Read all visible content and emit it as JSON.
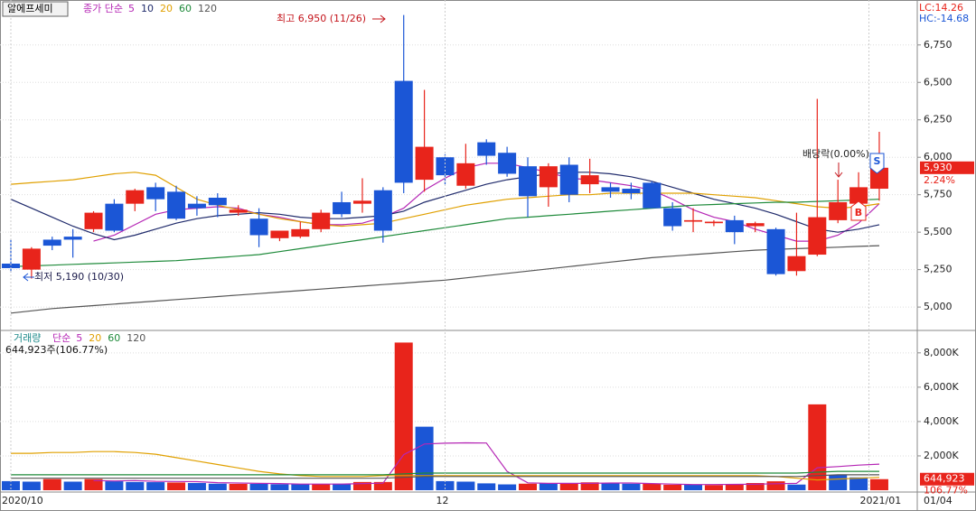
{
  "chart_data": [
    {
      "type": "candlestick",
      "title": "알에프세미",
      "legend_title": "종가 단순",
      "open": [
        5290,
        5250,
        5450,
        5470,
        5520,
        5690,
        5690,
        5800,
        5770,
        5690,
        5730,
        5630,
        5590,
        5460,
        5470,
        5520,
        5700,
        5690,
        5780,
        6510,
        5850,
        6000,
        5810,
        6100,
        6030,
        5940,
        5800,
        5950,
        5820,
        5800,
        5790,
        5830,
        5660,
        5570,
        5560,
        5580,
        5540,
        5520,
        5240,
        5350,
        5580,
        5690,
        5790
      ],
      "high": [
        5450,
        5400,
        5470,
        5520,
        5640,
        5720,
        5790,
        5830,
        5810,
        5740,
        5760,
        5680,
        5660,
        5510,
        5570,
        5650,
        5770,
        5860,
        5800,
        6950,
        6450,
        6020,
        6090,
        6120,
        6070,
        6000,
        5960,
        6000,
        5990,
        5830,
        5830,
        5840,
        5700,
        5660,
        5580,
        5610,
        5570,
        5530,
        5630,
        6390,
        5850,
        5900,
        6170
      ],
      "low": [
        5230,
        5190,
        5380,
        5330,
        5500,
        5500,
        5640,
        5640,
        5580,
        5610,
        5600,
        5610,
        5400,
        5440,
        5460,
        5500,
        5600,
        5630,
        5430,
        5760,
        5770,
        5820,
        5790,
        5950,
        5870,
        5600,
        5670,
        5700,
        5760,
        5730,
        5720,
        5660,
        5510,
        5500,
        5540,
        5420,
        5500,
        5210,
        5210,
        5340,
        5560,
        5670,
        5710
      ],
      "close": [
        5260,
        5390,
        5410,
        5450,
        5630,
        5510,
        5780,
        5720,
        5590,
        5660,
        5680,
        5650,
        5480,
        5510,
        5520,
        5630,
        5620,
        5710,
        5510,
        5830,
        6070,
        5880,
        5960,
        6010,
        5890,
        5740,
        5940,
        5750,
        5880,
        5770,
        5760,
        5660,
        5540,
        5580,
        5570,
        5500,
        5560,
        5220,
        5340,
        5600,
        5700,
        5800,
        5930
      ],
      "up_color": "#e8241b",
      "down_color": "#1b56d6",
      "series": [
        {
          "name": "5",
          "color": "#b526b5",
          "values": [
            null,
            null,
            null,
            null,
            5440,
            5480,
            5550,
            5620,
            5650,
            5660,
            5670,
            5660,
            5620,
            5600,
            5570,
            5550,
            5550,
            5560,
            5600,
            5660,
            5780,
            5860,
            5930,
            5960,
            5960,
            5930,
            5900,
            5860,
            5850,
            5830,
            5810,
            5780,
            5720,
            5650,
            5600,
            5570,
            5520,
            5480,
            5440,
            5440,
            5480,
            5560,
            5690
          ]
        },
        {
          "name": "10",
          "color": "#1f2a6b",
          "values": [
            5720,
            5660,
            5600,
            5540,
            5490,
            5450,
            5480,
            5520,
            5560,
            5590,
            5610,
            5620,
            5630,
            5620,
            5600,
            5590,
            5590,
            5600,
            5610,
            5640,
            5700,
            5740,
            5780,
            5820,
            5850,
            5870,
            5890,
            5900,
            5900,
            5890,
            5870,
            5840,
            5800,
            5760,
            5720,
            5690,
            5660,
            5620,
            5570,
            5520,
            5500,
            5520,
            5550
          ]
        },
        {
          "name": "20",
          "color": "#e0a000",
          "values": [
            5820,
            5830,
            5840,
            5850,
            5870,
            5890,
            5900,
            5880,
            5800,
            5720,
            5680,
            5650,
            5620,
            5590,
            5570,
            5550,
            5540,
            5550,
            5560,
            5590,
            5620,
            5650,
            5680,
            5700,
            5720,
            5730,
            5740,
            5750,
            5750,
            5760,
            5760,
            5760,
            5760,
            5760,
            5750,
            5740,
            5730,
            5710,
            5690,
            5670,
            5660,
            5670,
            5690
          ]
        },
        {
          "name": "60",
          "color": "#1e8a3a",
          "values": [
            5270,
            5275,
            5280,
            5285,
            5290,
            5295,
            5300,
            5305,
            5310,
            5320,
            5330,
            5340,
            5350,
            5370,
            5390,
            5410,
            5430,
            5450,
            5470,
            5490,
            5510,
            5530,
            5550,
            5570,
            5590,
            5600,
            5610,
            5620,
            5630,
            5640,
            5650,
            5660,
            5670,
            5680,
            5685,
            5690,
            5695,
            5700,
            5700,
            5705,
            5710,
            5715,
            5720
          ]
        },
        {
          "name": "120",
          "color": "#555555",
          "values": [
            4960,
            4975,
            4990,
            5000,
            5010,
            5020,
            5030,
            5040,
            5050,
            5060,
            5070,
            5080,
            5090,
            5100,
            5110,
            5120,
            5130,
            5140,
            5150,
            5160,
            5170,
            5180,
            5195,
            5210,
            5225,
            5240,
            5255,
            5270,
            5285,
            5300,
            5315,
            5330,
            5340,
            5350,
            5360,
            5370,
            5380,
            5385,
            5390,
            5395,
            5400,
            5405,
            5410
          ]
        }
      ],
      "ylim": [
        4850,
        7050
      ],
      "yticks": [
        {
          "value": 5000,
          "label": "5,000"
        },
        {
          "value": 5250,
          "label": "5,250"
        },
        {
          "value": 5500,
          "label": "5,500"
        },
        {
          "value": 5750,
          "label": "5,750"
        },
        {
          "value": 6000,
          "label": "6,000"
        },
        {
          "value": 6250,
          "label": "6,250"
        },
        {
          "value": 6500,
          "label": "6,500"
        },
        {
          "value": 6750,
          "label": "6,750"
        }
      ],
      "last_value_label": "5,930",
      "change_label": "2.24%",
      "lc_label": "LC:14.26",
      "hc_label": "HC:-14.68",
      "annotations": [
        "최고 6,950 (11/26)",
        "최저 5,190 (10/30)",
        "배당락(0.00%)",
        "S",
        "B"
      ]
    },
    {
      "type": "bar",
      "title": "거래량",
      "legend_title": "단순",
      "subtitle": "644,923주(106.77%)",
      "values": [
        530,
        500,
        650,
        500,
        650,
        520,
        480,
        470,
        450,
        420,
        380,
        370,
        370,
        350,
        340,
        360,
        380,
        480,
        480,
        8600,
        3700,
        530,
        500,
        400,
        340,
        380,
        420,
        400,
        460,
        420,
        380,
        380,
        320,
        320,
        300,
        320,
        420,
        520,
        330,
        5000,
        870,
        750,
        644.923
      ],
      "colors": [
        "#1b56d6",
        "#1b56d6",
        "#e8241b",
        "#1b56d6",
        "#e8241b",
        "#1b56d6",
        "#1b56d6",
        "#1b56d6",
        "#e8241b",
        "#1b56d6",
        "#1b56d6",
        "#e8241b",
        "#1b56d6",
        "#1b56d6",
        "#1b56d6",
        "#e8241b",
        "#1b56d6",
        "#e8241b",
        "#e8241b",
        "#e8241b",
        "#1b56d6",
        "#1b56d6",
        "#1b56d6",
        "#1b56d6",
        "#1b56d6",
        "#e8241b",
        "#1b56d6",
        "#e8241b",
        "#e8241b",
        "#1b56d6",
        "#1b56d6",
        "#e8241b",
        "#e8241b",
        "#1b56d6",
        "#e8241b",
        "#e8241b",
        "#e8241b",
        "#e8241b",
        "#1b56d6",
        "#e8241b",
        "#1b56d6",
        "#1b56d6",
        "#e8241b"
      ],
      "series": [
        {
          "name": "5",
          "color": "#b526b5",
          "values": [
            null,
            null,
            null,
            null,
            560,
            540,
            560,
            520,
            510,
            500,
            440,
            420,
            400,
            390,
            360,
            360,
            360,
            390,
            410,
            2070,
            2690,
            2740,
            2760,
            2750,
            1100,
            430,
            400,
            400,
            400,
            420,
            420,
            390,
            360,
            330,
            330,
            340,
            350,
            380,
            400,
            1310,
            1380,
            1460,
            1520
          ]
        },
        {
          "name": "20",
          "color": "#e0a000",
          "values": [
            2150,
            2150,
            2200,
            2200,
            2250,
            2250,
            2200,
            2100,
            1900,
            1700,
            1500,
            1300,
            1100,
            950,
            850,
            800,
            800,
            800,
            850,
            850,
            850,
            850,
            850,
            850,
            850,
            850,
            850,
            850,
            850,
            850,
            850,
            850,
            850,
            850,
            850,
            850,
            850,
            800,
            700,
            600,
            650,
            700,
            750
          ]
        },
        {
          "name": "60",
          "color": "#1e8a3a",
          "values": [
            900,
            900,
            900,
            900,
            900,
            900,
            900,
            900,
            900,
            900,
            900,
            900,
            900,
            900,
            900,
            900,
            900,
            900,
            900,
            950,
            1000,
            1000,
            1000,
            1000,
            1000,
            1000,
            1000,
            1000,
            1000,
            1000,
            1000,
            1000,
            1000,
            1000,
            1000,
            1000,
            1000,
            1000,
            1000,
            1050,
            1100,
            1100,
            1100
          ]
        },
        {
          "name": "120",
          "color": "#555555",
          "values": [
            700,
            700,
            700,
            700,
            700,
            700,
            700,
            700,
            700,
            700,
            700,
            700,
            700,
            700,
            700,
            700,
            700,
            700,
            700,
            750,
            800,
            800,
            800,
            800,
            800,
            800,
            800,
            800,
            800,
            800,
            800,
            800,
            800,
            800,
            800,
            800,
            800,
            800,
            800,
            850,
            900,
            900,
            900
          ]
        }
      ],
      "ylim": [
        0,
        9200
      ],
      "yticks": [
        {
          "value": 2000,
          "label": "2,000K"
        },
        {
          "value": 4000,
          "label": "4,000K"
        },
        {
          "value": 6000,
          "label": "6,000K"
        },
        {
          "value": 8000,
          "label": "8,000K"
        }
      ],
      "last_value_label": "644,923",
      "change_label": "106.77%",
      "xticks": [
        {
          "value": 0,
          "label": "2020/10"
        },
        {
          "value": 21,
          "label": "12"
        },
        {
          "value": 41.5,
          "label": "2021/01"
        }
      ],
      "last_date": "01/04"
    }
  ]
}
